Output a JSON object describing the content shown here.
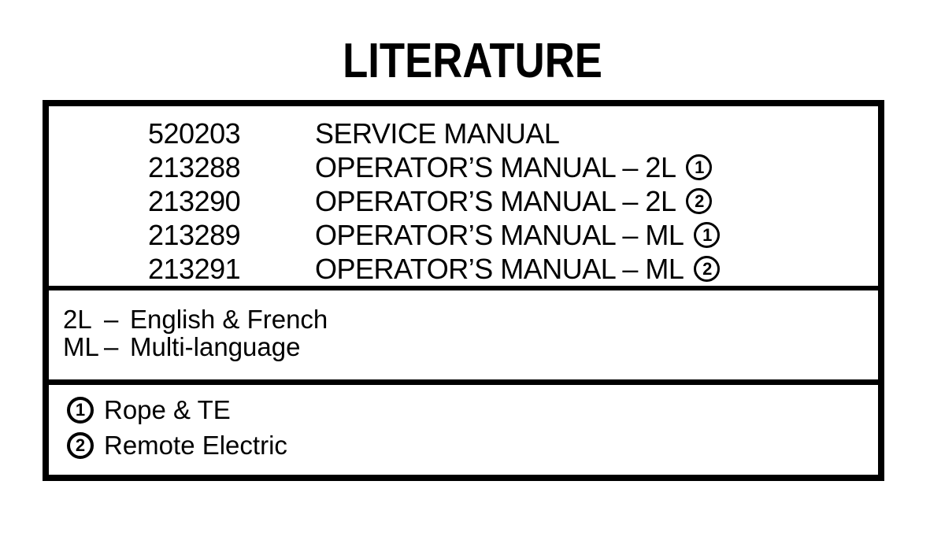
{
  "doc": {
    "title": "LITERATURE",
    "ink_color": "#000000",
    "paper_color": "#ffffff",
    "items": [
      {
        "part": "520203",
        "desc": "SERVICE MANUAL",
        "note": ""
      },
      {
        "part": "213288",
        "desc": "OPERATOR’S MANUAL – 2L",
        "note": "1"
      },
      {
        "part": "213290",
        "desc": "OPERATOR’S MANUAL – 2L",
        "note": "2"
      },
      {
        "part": "213289",
        "desc": "OPERATOR’S MANUAL – ML",
        "note": "1"
      },
      {
        "part": "213291",
        "desc": "OPERATOR’S MANUAL – ML",
        "note": "2"
      }
    ],
    "legend": [
      {
        "code": "2L",
        "dash": "–",
        "meaning": "English & French"
      },
      {
        "code": "ML",
        "dash": "–",
        "meaning": "Multi-language"
      }
    ],
    "notes": [
      {
        "symbol": "1",
        "text": "Rope & TE"
      },
      {
        "symbol": "2",
        "text": "Remote Electric"
      }
    ]
  }
}
